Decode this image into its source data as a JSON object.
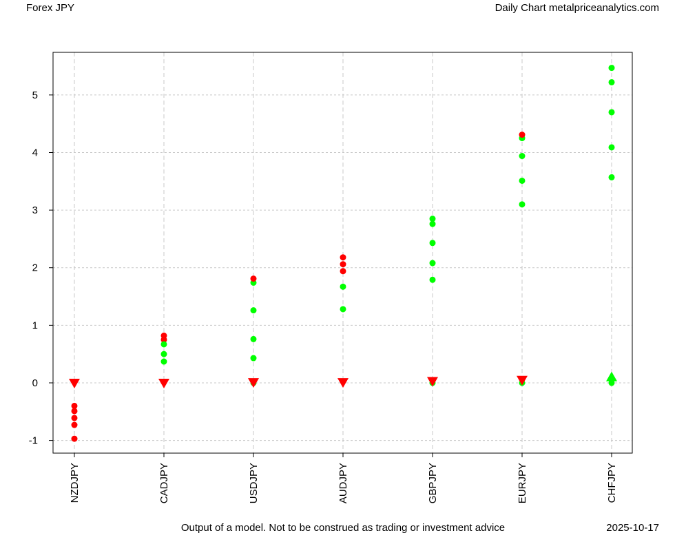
{
  "header": {
    "left_title": "Forex JPY",
    "right_title": "Daily Chart metalpriceanalytics.com"
  },
  "footer": {
    "disclaimer": "Output of a model. Not to be construed as trading or investment advice",
    "date": "2025-10-17"
  },
  "colors": {
    "up": "#00ff00",
    "down": "#ff0000",
    "grid": "#c8c8c8"
  },
  "chart_data": {
    "type": "scatter",
    "title": "Forex JPY",
    "xlabel": "",
    "ylabel": "",
    "ylim": [
      -1.22,
      5.74
    ],
    "yticks": [
      -1,
      0,
      1,
      2,
      3,
      4,
      5
    ],
    "grid": true,
    "categories": [
      "NZDJPY",
      "CADJPY",
      "USDJPY",
      "AUDJPY",
      "GBPJPY",
      "EURJPY",
      "CHFJPY"
    ],
    "series": [
      {
        "category": "NZDJPY",
        "points": [
          {
            "y": -0.4,
            "color": "red"
          },
          {
            "y": -0.49,
            "color": "red"
          },
          {
            "y": -0.61,
            "color": "red"
          },
          {
            "y": -0.73,
            "color": "red"
          },
          {
            "y": -0.97,
            "color": "red"
          }
        ],
        "marker": {
          "y": 0.0,
          "shape": "triangle-down",
          "color": "red"
        }
      },
      {
        "category": "CADJPY",
        "points": [
          {
            "y": 0.82,
            "color": "red"
          },
          {
            "y": 0.75,
            "color": "red"
          },
          {
            "y": 0.67,
            "color": "green"
          },
          {
            "y": 0.5,
            "color": "green"
          },
          {
            "y": 0.37,
            "color": "green"
          }
        ],
        "marker": {
          "y": 0.0,
          "shape": "triangle-down",
          "color": "red"
        }
      },
      {
        "category": "USDJPY",
        "points": [
          {
            "y": 0.0,
            "color": "green"
          },
          {
            "y": 1.74,
            "color": "green"
          },
          {
            "y": 1.26,
            "color": "green"
          },
          {
            "y": 0.76,
            "color": "green"
          },
          {
            "y": 0.43,
            "color": "green"
          },
          {
            "y": 1.81,
            "color": "red"
          }
        ],
        "marker": {
          "y": 0.01,
          "shape": "triangle-down",
          "color": "red"
        }
      },
      {
        "category": "AUDJPY",
        "points": [
          {
            "y": 2.18,
            "color": "red"
          },
          {
            "y": 2.06,
            "color": "red"
          },
          {
            "y": 1.94,
            "color": "red"
          },
          {
            "y": 1.67,
            "color": "green"
          },
          {
            "y": 1.28,
            "color": "green"
          }
        ],
        "marker": {
          "y": 0.01,
          "shape": "triangle-down",
          "color": "red"
        }
      },
      {
        "category": "GBPJPY",
        "points": [
          {
            "y": 0.0,
            "color": "green"
          },
          {
            "y": 2.85,
            "color": "green"
          },
          {
            "y": 2.76,
            "color": "green"
          },
          {
            "y": 2.43,
            "color": "green"
          },
          {
            "y": 2.08,
            "color": "green"
          },
          {
            "y": 1.79,
            "color": "green"
          }
        ],
        "marker": {
          "y": 0.03,
          "shape": "triangle-down",
          "color": "red"
        }
      },
      {
        "category": "EURJPY",
        "points": [
          {
            "y": 0.0,
            "color": "green"
          },
          {
            "y": 4.25,
            "color": "green"
          },
          {
            "y": 3.94,
            "color": "green"
          },
          {
            "y": 3.51,
            "color": "green"
          },
          {
            "y": 3.1,
            "color": "green"
          },
          {
            "y": 4.31,
            "color": "red"
          }
        ],
        "marker": {
          "y": 0.05,
          "shape": "triangle-down",
          "color": "red"
        }
      },
      {
        "category": "CHFJPY",
        "points": [
          {
            "y": 0.0,
            "color": "green"
          },
          {
            "y": 5.47,
            "color": "green"
          },
          {
            "y": 5.22,
            "color": "green"
          },
          {
            "y": 4.7,
            "color": "green"
          },
          {
            "y": 4.09,
            "color": "green"
          },
          {
            "y": 3.57,
            "color": "green"
          }
        ],
        "marker": {
          "y": 0.1,
          "shape": "triangle-up",
          "color": "green"
        }
      }
    ]
  }
}
